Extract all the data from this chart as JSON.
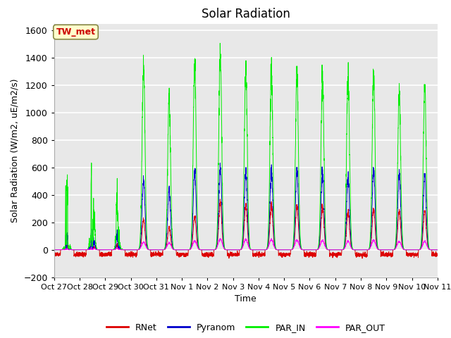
{
  "title": "Solar Radiation",
  "ylabel": "Solar Radiation (W/m2, uE/m2/s)",
  "xlabel": "Time",
  "ylim": [
    -200,
    1650
  ],
  "background_color": "#e0e0e0",
  "plot_bg_color": "#e8e8e8",
  "fig_bg_color": "#ffffff",
  "grid_color": "#d0d0d0",
  "annotation_text": "TW_met",
  "annotation_bg": "#ffffcc",
  "annotation_border": "#888844",
  "annotation_fg": "#cc0000",
  "legend": [
    "RNet",
    "Pyranom",
    "PAR_IN",
    "PAR_OUT"
  ],
  "line_colors": [
    "#dd0000",
    "#0000cc",
    "#00ee00",
    "#ff00ff"
  ],
  "tick_labels": [
    "Oct 27",
    "Oct 28",
    "Oct 29",
    "Oct 30",
    "Oct 31",
    "Nov 1",
    "Nov 2",
    "Nov 3",
    "Nov 4",
    "Nov 5",
    "Nov 6",
    "Nov 7",
    "Nov 8",
    "Nov 9",
    "Nov 10",
    "Nov 11"
  ],
  "yticks": [
    -200,
    0,
    200,
    400,
    600,
    800,
    1000,
    1200,
    1400,
    1600
  ],
  "days": 15,
  "points_per_day": 288,
  "par_in_peaks": [
    480,
    750,
    500,
    1340,
    1090,
    1350,
    1430,
    1320,
    1300,
    1280,
    1270,
    1270,
    1280,
    1150,
    1180
  ],
  "pyranom_peaks": [
    110,
    180,
    140,
    510,
    430,
    575,
    600,
    575,
    575,
    575,
    570,
    530,
    585,
    555,
    545
  ],
  "rnet_peaks": [
    30,
    55,
    45,
    220,
    160,
    240,
    350,
    325,
    325,
    315,
    315,
    275,
    295,
    280,
    280
  ],
  "par_out_peaks": [
    10,
    20,
    15,
    55,
    50,
    65,
    80,
    75,
    75,
    70,
    68,
    62,
    70,
    62,
    62
  ],
  "rnet_night": -35,
  "cloud_days": [
    0,
    1,
    2
  ],
  "figsize": [
    6.4,
    4.8
  ],
  "dpi": 100
}
